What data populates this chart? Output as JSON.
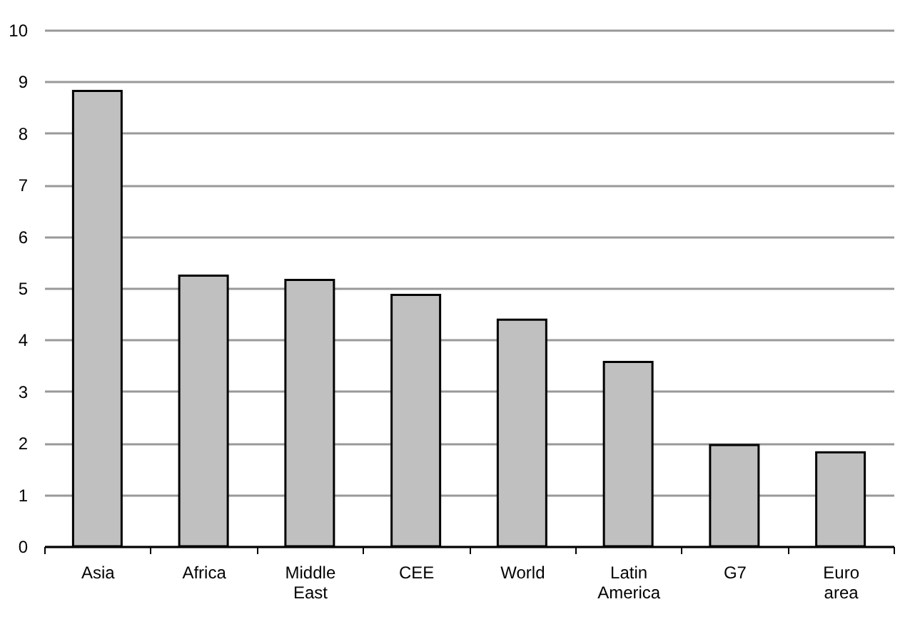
{
  "chart_data": {
    "type": "bar",
    "categories": [
      "Asia",
      "Africa",
      "Middle East",
      "CEE",
      "World",
      "Latin America",
      "G7",
      "Euro area"
    ],
    "values": [
      8.82,
      5.24,
      5.16,
      4.87,
      4.39,
      3.57,
      1.96,
      1.82
    ],
    "color": "#c0c0c0",
    "ylim": [
      0,
      10
    ],
    "yticks": [
      0,
      1,
      2,
      3,
      4,
      5,
      6,
      7,
      8,
      9,
      10
    ],
    "grid": "y"
  }
}
